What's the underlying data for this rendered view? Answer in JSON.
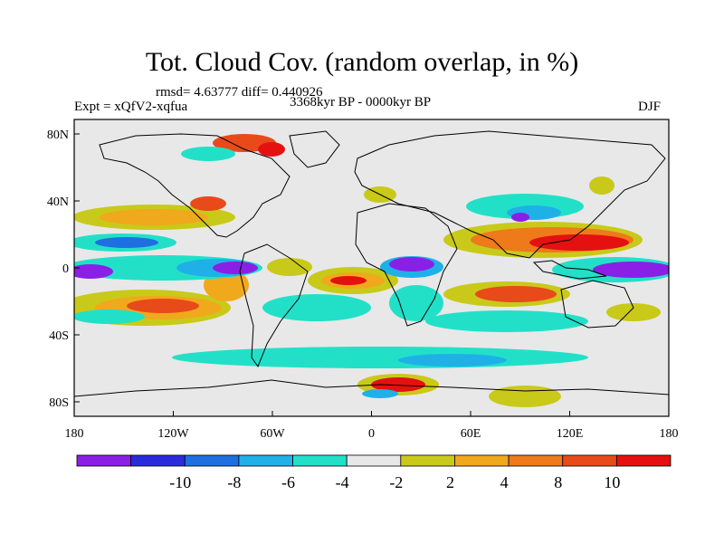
{
  "title": "Tot. Cloud Cov. (random overlap, in %)",
  "stats": "rmsd= 4.63777 diff= 0.440926",
  "experiment": "Expt = xQfV2-xqfua",
  "period": "3368kyr BP - 0000kyr BP",
  "season": "DJF",
  "lon_ticks": [
    "180",
    "120W",
    "60W",
    "0",
    "60E",
    "120E",
    "180"
  ],
  "lat_ticks": [
    "80N",
    "40N",
    "0",
    "40S",
    "80S"
  ],
  "colorbar": {
    "colors": [
      "#8a1fe6",
      "#2b2bdc",
      "#1f6fe0",
      "#1fb0e8",
      "#22e0c8",
      "#e8e8e8",
      "#c9c91a",
      "#f0a81c",
      "#ee7a1a",
      "#e84a1a",
      "#e51010"
    ],
    "labels": [
      "-10",
      "-8",
      "-6",
      "-4",
      "-2",
      "2",
      "4",
      "8",
      "10"
    ]
  },
  "map_colors": {
    "background": "#e8e8e8",
    "coastline": "#000000"
  }
}
